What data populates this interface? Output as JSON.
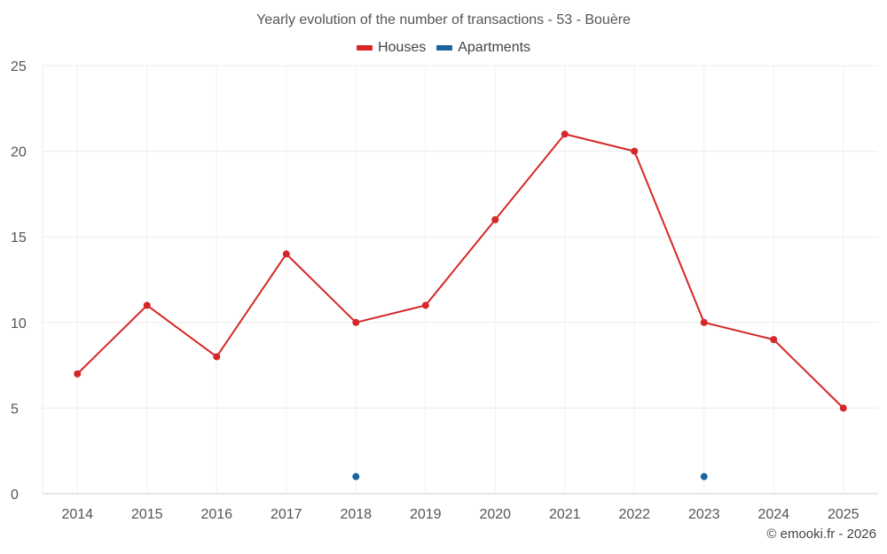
{
  "chart_data": {
    "type": "line",
    "title": "Yearly evolution of the number of transactions - 53 - Bouère",
    "categories": [
      "2014",
      "2015",
      "2016",
      "2017",
      "2018",
      "2019",
      "2020",
      "2021",
      "2022",
      "2023",
      "2024",
      "2025"
    ],
    "series": [
      {
        "name": "Houses",
        "color": "#d62728",
        "values": [
          7,
          11,
          8,
          14,
          10,
          11,
          16,
          21,
          20,
          10,
          9,
          5
        ]
      },
      {
        "name": "Apartments",
        "color": "#1a64a0",
        "values": [
          null,
          null,
          null,
          null,
          1,
          null,
          null,
          null,
          null,
          1,
          null,
          null
        ]
      }
    ],
    "ylim": [
      0,
      25
    ],
    "yticks": [
      "0",
      "5",
      "10",
      "15",
      "20",
      "25"
    ],
    "xlabel": "",
    "ylabel": "",
    "grid": true,
    "legend": "top-center"
  },
  "credit": "© emooki.fr - 2026"
}
